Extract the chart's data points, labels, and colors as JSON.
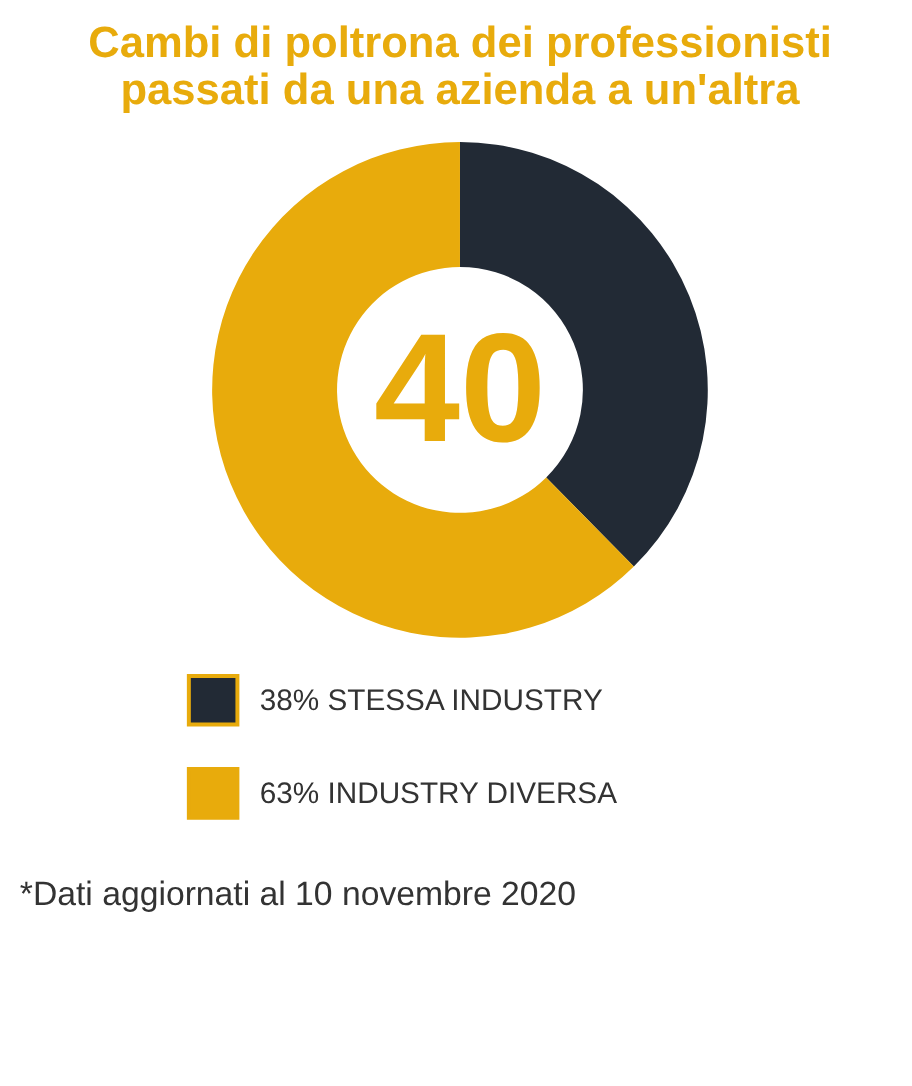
{
  "chart_data": {
    "type": "donut",
    "title": [
      "Cambi di poltrona dei professionisti",
      "passati da una azienda a un'altra"
    ],
    "categories": [
      "STESSA INDUSTRY",
      "INDUSTRY DIVERSA"
    ],
    "values": [
      38,
      63
    ],
    "value_labels": [
      "38%",
      "63%"
    ],
    "colors": [
      "#222a35",
      "#e8ab0c"
    ],
    "legend": "bottom",
    "annotations": [
      "40",
      "*Dati aggiornati al 10 novembre 2020"
    ]
  }
}
